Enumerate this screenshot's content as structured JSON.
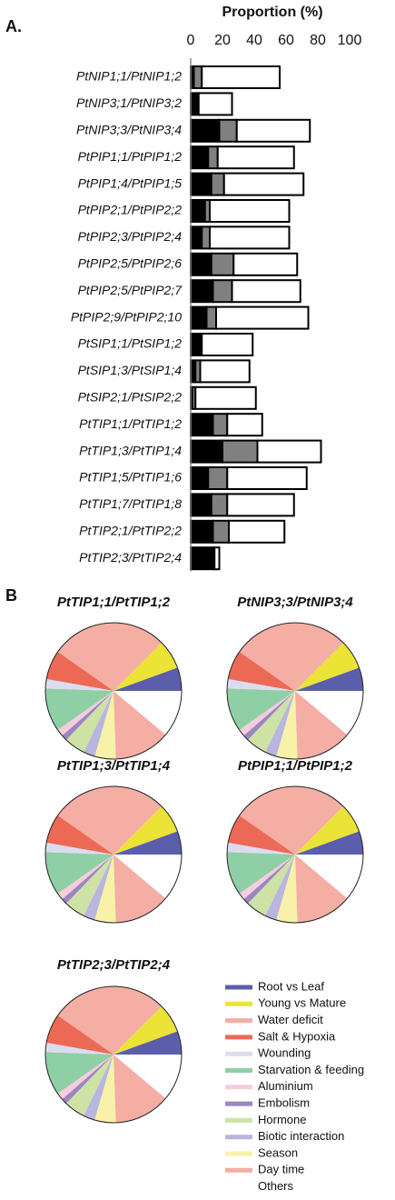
{
  "chart_data": [
    {
      "type": "bar",
      "orientation": "horizontal",
      "stacked": true,
      "label": "A.",
      "xlabel": "Proportion (%)",
      "xlim": [
        0,
        100
      ],
      "xticks": [
        0,
        20,
        40,
        60,
        80,
        100
      ],
      "categories": [
        "PtNIP1;1/PtNIP1;2",
        "PtNIP3;1/PtNIP3;2",
        "PtNIP3;3/PtNIP3;4",
        "PtPIP1;1/PtPIP1;2",
        "PtPIP1;4/PtPIP1;5",
        "PtPIP2;1/PtPIP2;2",
        "PtPIP2;3/PtPIP2;4",
        "PtPIP2;5/PtPIP2;6",
        "PtPIP2;5/PtPIP2;7",
        "PtPIP2;9/PtPIP2;10",
        "PtSIP1;1/PtSIP1;2",
        "PtSIP1;3/PtSIP1;4",
        "PtSIP2;1/PtSIP2;2",
        "PtTIP1;1/PtTIP1;2",
        "PtTIP1;3/PtTIP1;4",
        "PtTIP1;5/PtTIP1;6",
        "PtTIP1;7/PtTIP1;8",
        "PtTIP2;1/PtTIP2;2",
        "PtTIP2;3/PtTIP2;4"
      ],
      "series": [
        {
          "color": "#000000",
          "values": [
            2,
            5,
            18,
            11,
            13,
            9,
            7,
            13,
            14,
            10,
            7,
            3,
            1,
            14,
            20,
            11,
            13,
            14,
            14
          ]
        },
        {
          "color": "#808080",
          "values": [
            5,
            0,
            11,
            6,
            8,
            3,
            5,
            14,
            12,
            6,
            0,
            3,
            2,
            9,
            22,
            12,
            10,
            10,
            1
          ]
        },
        {
          "color": "#ffffff",
          "values": [
            49,
            21,
            46,
            48,
            50,
            50,
            50,
            40,
            43,
            58,
            32,
            31,
            38,
            22,
            40,
            50,
            42,
            35,
            3
          ]
        }
      ]
    },
    {
      "type": "pie",
      "label": "B",
      "categories": [
        "Root vs Leaf",
        "Young vs Mature",
        "Water deficit",
        "Salt & Hypoxia",
        "Wounding",
        "Starvation & feeding",
        "Aluminium",
        "Embolism",
        "Hormone",
        "Biotic interaction",
        "Season",
        "Day time",
        "Others"
      ],
      "colors": [
        "#5b5fab",
        "#ebe336",
        "#f4aea4",
        "#ec6a55",
        "#dcdcf0",
        "#8fcfa6",
        "#f6cddc",
        "#9b86c0",
        "#cfe2a5",
        "#b8b6de",
        "#f7f2a7",
        "#f4aea4",
        "#ffffff"
      ],
      "series": [
        {
          "name": "PtTIP1;1/PtTIP1;2",
          "values": [
            20,
            25,
            100,
            25,
            8,
            37,
            6,
            5,
            18,
            10,
            18,
            48,
            40
          ]
        },
        {
          "name": "PtNIP3;3/PtNIP3;4",
          "values": [
            20,
            25,
            100,
            25,
            8,
            37,
            6,
            5,
            18,
            10,
            18,
            48,
            40
          ]
        },
        {
          "name": "PtTIP1;3/PtTIP1;4",
          "values": [
            20,
            25,
            100,
            25,
            8,
            37,
            6,
            5,
            18,
            10,
            18,
            48,
            40
          ]
        },
        {
          "name": "PtPIP1;1/PtPIP1;2",
          "values": [
            20,
            25,
            100,
            25,
            8,
            37,
            6,
            5,
            18,
            10,
            18,
            48,
            40
          ]
        },
        {
          "name": "PtTIP2;3/PtTIP2;4",
          "values": [
            20,
            25,
            100,
            25,
            8,
            37,
            6,
            5,
            18,
            10,
            18,
            48,
            40
          ]
        }
      ]
    }
  ]
}
